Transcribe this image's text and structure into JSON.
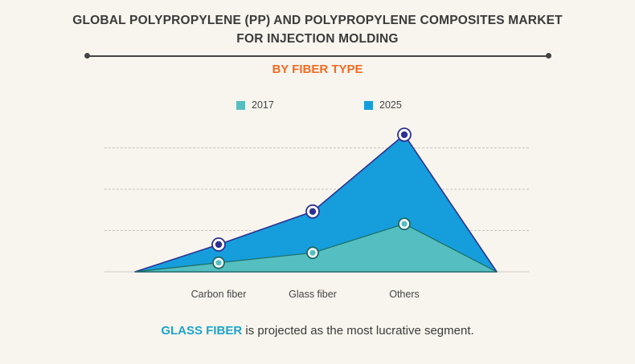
{
  "title_line1": "GLOBAL POLYPROPYLENE (PP) AND POLYPROPYLENE COMPOSITES MARKET",
  "title_line2": "FOR INJECTION MOLDING",
  "subtitle": "BY FIBER TYPE",
  "caption": {
    "highlight": "GLASS FIBER",
    "rest": " is projected as the most lucrative segment."
  },
  "colors": {
    "series_2017": "#55bec0",
    "series_2025": "#169edc",
    "outline_2025": "#2e3192",
    "outline_2017": "#1a6b63",
    "subtitle": "#f26a22",
    "highlight": "#1ea4c9"
  },
  "chart_data": {
    "type": "area",
    "categories": [
      "Carbon fiber",
      "Glass fiber",
      "Others"
    ],
    "series": [
      {
        "name": "2017",
        "values": [
          11,
          23,
          58
        ]
      },
      {
        "name": "2025",
        "values": [
          33,
          73,
          166
        ]
      }
    ],
    "ylim": [
      0,
      200
    ],
    "grid": true,
    "legend": "top-center"
  }
}
